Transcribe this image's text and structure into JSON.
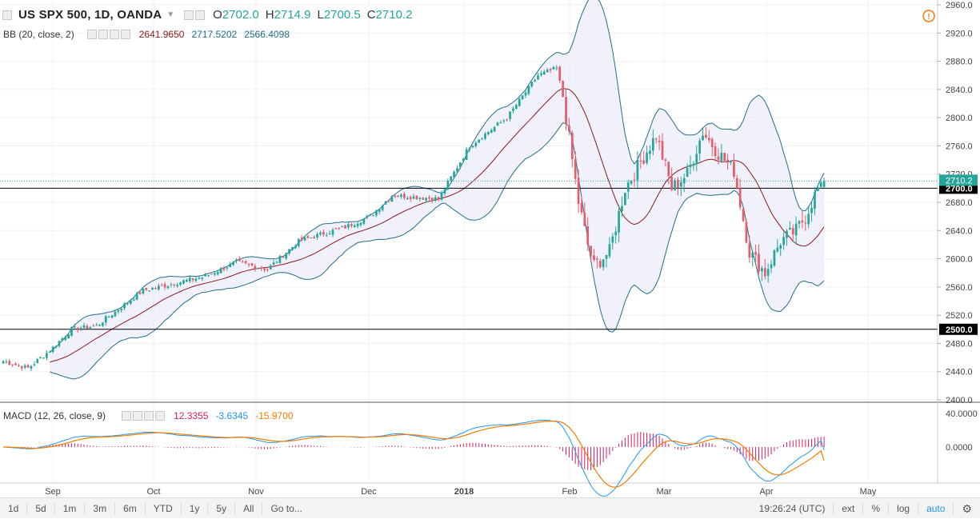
{
  "header": {
    "symbol": "US SPX 500, 1D, OANDA",
    "ohlc": [
      {
        "label": "O",
        "value": "2702.0"
      },
      {
        "label": "H",
        "value": "2714.9"
      },
      {
        "label": "L",
        "value": "2700.5"
      },
      {
        "label": "C",
        "value": "2710.2"
      }
    ]
  },
  "bb_legend": {
    "label": "BB (20, close, 2)",
    "values": [
      "2641.9650",
      "2717.5202",
      "2566.4098"
    ],
    "colors": [
      "#8b1a1a",
      "#1f6f8b",
      "#1f6f8b"
    ]
  },
  "macd_legend": {
    "label": "MACD (12, 26, close, 9)",
    "values": [
      "12.3355",
      "-3.6345",
      "-15.9700"
    ],
    "colors": [
      "#d81b60",
      "#2196f3",
      "#f57c00"
    ]
  },
  "price_axis": {
    "ticks": [
      "2960.0",
      "2920.0",
      "2880.0",
      "2840.0",
      "2800.0",
      "2760.0",
      "2720.0",
      "2680.0",
      "2640.0",
      "2600.0",
      "2560.0",
      "2520.0",
      "2480.0",
      "2440.0",
      "2400.0"
    ],
    "last_price": "2710.2",
    "hlines": [
      "2700.0",
      "2500.0"
    ]
  },
  "macd_axis": {
    "ticks": [
      "40.0000",
      "0.0000"
    ]
  },
  "time_axis": {
    "ticks": [
      "Sep",
      "Oct",
      "Nov",
      "Dec",
      "2018",
      "Feb",
      "Mar",
      "Apr",
      "May"
    ]
  },
  "toolbar": {
    "ranges": [
      "1d",
      "5d",
      "1m",
      "3m",
      "6m",
      "YTD",
      "1y",
      "5y",
      "All",
      "Go to..."
    ],
    "time": "19:26:24 (UTC)",
    "right": [
      "ext",
      "%",
      "log",
      "auto"
    ]
  },
  "colors": {
    "up": "#26a69a",
    "down": "#e35d6a",
    "bb_band": "#1f6f8b",
    "bb_basis": "#8b1a1a",
    "bb_fill": "#ebebfa",
    "macd": "#2196f3",
    "signal": "#f57c00",
    "hist": "#d81b60"
  },
  "chart_data": {
    "type": "candlestick",
    "symbol": "US SPX 500",
    "interval": "1D",
    "x_labels": [
      "Sep",
      "Oct",
      "Nov",
      "Dec",
      "2018",
      "Feb",
      "Mar",
      "Apr",
      "May"
    ],
    "ylim": [
      2400,
      2960
    ],
    "anchors": [
      [
        0,
        2455
      ],
      [
        8,
        2445
      ],
      [
        15,
        2470
      ],
      [
        22,
        2500
      ],
      [
        30,
        2505
      ],
      [
        45,
        2555
      ],
      [
        55,
        2565
      ],
      [
        65,
        2575
      ],
      [
        75,
        2595
      ],
      [
        85,
        2585
      ],
      [
        95,
        2625
      ],
      [
        110,
        2645
      ],
      [
        118,
        2660
      ],
      [
        125,
        2690
      ],
      [
        140,
        2685
      ],
      [
        150,
        2760
      ],
      [
        162,
        2800
      ],
      [
        172,
        2860
      ],
      [
        178,
        2870
      ],
      [
        180,
        2830
      ],
      [
        185,
        2680
      ],
      [
        188,
        2620
      ],
      [
        190,
        2590
      ],
      [
        195,
        2610
      ],
      [
        200,
        2700
      ],
      [
        210,
        2775
      ],
      [
        215,
        2700
      ],
      [
        220,
        2720
      ],
      [
        225,
        2780
      ],
      [
        230,
        2750
      ],
      [
        235,
        2725
      ],
      [
        240,
        2610
      ],
      [
        245,
        2580
      ],
      [
        250,
        2625
      ],
      [
        255,
        2640
      ],
      [
        258,
        2660
      ],
      [
        262,
        2700
      ],
      [
        264,
        2710
      ]
    ],
    "last": {
      "open": 2702.0,
      "high": 2714.9,
      "low": 2700.5,
      "close": 2710.2
    },
    "bollinger": {
      "length": 20,
      "basis": 2641.965,
      "upper": 2717.5202,
      "lower": 2566.4098
    },
    "macd": {
      "fast": 12,
      "slow": 26,
      "signal": 9,
      "histogram": 12.3355,
      "macd": -3.6345,
      "signal_value": -15.97
    },
    "hlines": [
      2700.0,
      2500.0
    ]
  }
}
